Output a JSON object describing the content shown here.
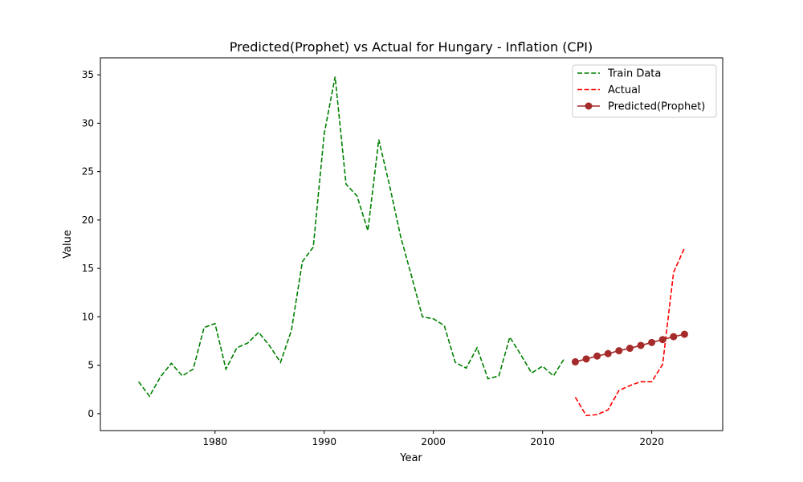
{
  "chart_data": {
    "type": "line",
    "title": "Predicted(Prophet) vs Actual for Hungary - Inflation (CPI)",
    "xlabel": "Year",
    "ylabel": "Value",
    "xlim": [
      1969.5,
      2026.5
    ],
    "ylim": [
      -1.75,
      36.75
    ],
    "xticks": [
      1980,
      1990,
      2000,
      2010,
      2020
    ],
    "yticks": [
      0,
      5,
      10,
      15,
      20,
      25,
      30,
      35
    ],
    "legend_position": "top-right",
    "series": [
      {
        "name": "Train Data",
        "style": "dashed",
        "color": "#008000",
        "x": [
          1973,
          1974,
          1975,
          1976,
          1977,
          1978,
          1979,
          1980,
          1981,
          1982,
          1983,
          1984,
          1985,
          1986,
          1987,
          1988,
          1989,
          1990,
          1991,
          1992,
          1993,
          1994,
          1995,
          1996,
          1997,
          1998,
          1999,
          2000,
          2001,
          2002,
          2003,
          2004,
          2005,
          2006,
          2007,
          2008,
          2009,
          2010,
          2011,
          2012
        ],
        "y": [
          3.3,
          1.8,
          3.8,
          5.2,
          3.9,
          4.6,
          8.9,
          9.3,
          4.6,
          6.8,
          7.3,
          8.4,
          7.0,
          5.3,
          8.6,
          15.7,
          17.2,
          28.9,
          34.8,
          23.7,
          22.5,
          18.9,
          28.3,
          23.5,
          18.3,
          14.2,
          10.0,
          9.8,
          9.1,
          5.3,
          4.7,
          6.8,
          3.6,
          3.9,
          7.9,
          6.1,
          4.2,
          4.9,
          3.9,
          5.7
        ]
      },
      {
        "name": "Actual",
        "style": "dashed",
        "color": "#ff0000",
        "x": [
          2013,
          2014,
          2015,
          2016,
          2017,
          2018,
          2019,
          2020,
          2021,
          2022,
          2023
        ],
        "y": [
          1.7,
          -0.2,
          -0.1,
          0.4,
          2.4,
          2.9,
          3.3,
          3.3,
          5.1,
          14.6,
          17.1
        ]
      },
      {
        "name": "Predicted(Prophet)",
        "style": "solid-markers",
        "color": "#a52a2a",
        "x": [
          2013,
          2014,
          2015,
          2016,
          2017,
          2018,
          2019,
          2020,
          2021,
          2022,
          2023
        ],
        "y": [
          5.35,
          5.65,
          5.95,
          6.2,
          6.5,
          6.75,
          7.05,
          7.35,
          7.65,
          7.95,
          8.2
        ]
      }
    ]
  }
}
